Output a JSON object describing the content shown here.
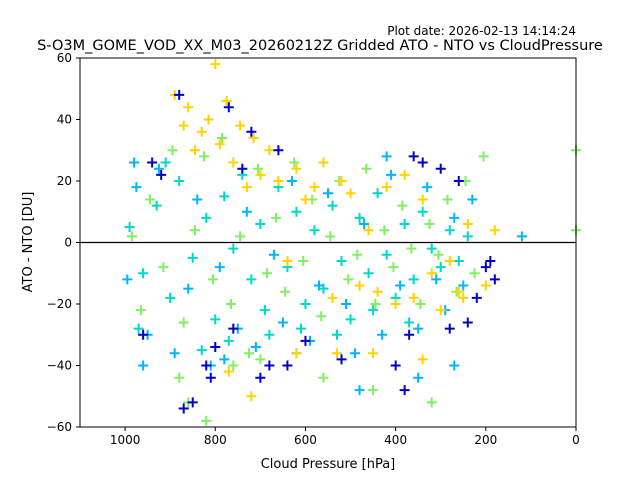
{
  "chart_data": {
    "type": "scatter",
    "title": "S-O3M_GOME_VOD_XX_M03_20260212Z Gridded ATO - NTO vs CloudPressure",
    "subtitle": "Plot date: 2026-02-13 14:14:24",
    "xlabel": "Cloud Pressure [hPa]",
    "ylabel": "ATO - NTO [DU]",
    "xlim": [
      1100,
      0
    ],
    "ylim": [
      -60,
      60
    ],
    "x_reversed": true,
    "x_ticks": [
      1000,
      800,
      600,
      400,
      200,
      0
    ],
    "y_ticks": [
      -60,
      -40,
      -20,
      0,
      20,
      40,
      60
    ],
    "x_tick_labels": [
      "1000",
      "800",
      "600",
      "400",
      "200",
      "0"
    ],
    "y_tick_labels": [
      "−60",
      "−40",
      "−20",
      "0",
      "20",
      "40",
      "60"
    ],
    "reference_line": {
      "y": 0,
      "color": "#000000"
    },
    "marker": "+",
    "grid": false,
    "series": [
      {
        "color": "#00d8c8",
        "points": [
          [
            990,
            5
          ],
          [
            960,
            -10
          ],
          [
            930,
            12
          ],
          [
            900,
            -18
          ],
          [
            880,
            20
          ],
          [
            850,
            -5
          ],
          [
            820,
            8
          ],
          [
            800,
            -25
          ],
          [
            780,
            15
          ],
          [
            760,
            -2
          ],
          [
            740,
            22
          ],
          [
            720,
            -12
          ],
          [
            700,
            6
          ],
          [
            680,
            -30
          ],
          [
            660,
            18
          ],
          [
            640,
            -8
          ],
          [
            620,
            10
          ],
          [
            600,
            -20
          ],
          [
            580,
            4
          ],
          [
            560,
            -15
          ],
          [
            540,
            12
          ],
          [
            520,
            -6
          ],
          [
            500,
            -25
          ],
          [
            480,
            8
          ],
          [
            460,
            -10
          ],
          [
            440,
            16
          ],
          [
            420,
            -4
          ],
          [
            400,
            -18
          ],
          [
            380,
            6
          ],
          [
            360,
            -12
          ],
          [
            340,
            10
          ],
          [
            320,
            -2
          ],
          [
            300,
            -8
          ],
          [
            280,
            4
          ],
          [
            260,
            -6
          ],
          [
            240,
            2
          ],
          [
            970,
            -28
          ],
          [
            910,
            26
          ],
          [
            830,
            -35
          ],
          [
            770,
            -32
          ],
          [
            690,
            -22
          ],
          [
            610,
            -28
          ],
          [
            530,
            -30
          ],
          [
            450,
            -22
          ],
          [
            370,
            -26
          ]
        ]
      },
      {
        "color": "#00b4ff",
        "points": [
          [
            995,
            -12
          ],
          [
            975,
            18
          ],
          [
            950,
            -30
          ],
          [
            925,
            24
          ],
          [
            890,
            -36
          ],
          [
            860,
            -15
          ],
          [
            840,
            14
          ],
          [
            810,
            -40
          ],
          [
            790,
            -8
          ],
          [
            750,
            -28
          ],
          [
            730,
            10
          ],
          [
            710,
            -34
          ],
          [
            670,
            -4
          ],
          [
            650,
            -26
          ],
          [
            630,
            20
          ],
          [
            590,
            -32
          ],
          [
            570,
            -14
          ],
          [
            550,
            16
          ],
          [
            510,
            -20
          ],
          [
            490,
            -36
          ],
          [
            470,
            6
          ],
          [
            430,
            -30
          ],
          [
            410,
            22
          ],
          [
            390,
            -14
          ],
          [
            350,
            -28
          ],
          [
            330,
            18
          ],
          [
            310,
            -12
          ],
          [
            290,
            -22
          ],
          [
            270,
            8
          ],
          [
            250,
            -14
          ],
          [
            230,
            14
          ],
          [
            120,
            2
          ],
          [
            960,
            -40
          ],
          [
            780,
            -38
          ],
          [
            620,
            -36
          ],
          [
            480,
            -48
          ],
          [
            350,
            -44
          ],
          [
            270,
            -40
          ],
          [
            980,
            26
          ],
          [
            420,
            28
          ]
        ]
      },
      {
        "color": "#80f060",
        "points": [
          [
            985,
            2
          ],
          [
            965,
            -22
          ],
          [
            945,
            14
          ],
          [
            915,
            -8
          ],
          [
            895,
            30
          ],
          [
            870,
            -26
          ],
          [
            845,
            4
          ],
          [
            825,
            28
          ],
          [
            805,
            -12
          ],
          [
            785,
            34
          ],
          [
            765,
            -20
          ],
          [
            745,
            2
          ],
          [
            725,
            -36
          ],
          [
            705,
            24
          ],
          [
            685,
            -10
          ],
          [
            665,
            8
          ],
          [
            645,
            -16
          ],
          [
            625,
            26
          ],
          [
            605,
            -6
          ],
          [
            585,
            14
          ],
          [
            565,
            -24
          ],
          [
            545,
            2
          ],
          [
            525,
            20
          ],
          [
            505,
            -12
          ],
          [
            485,
            -4
          ],
          [
            465,
            24
          ],
          [
            445,
            -20
          ],
          [
            425,
            4
          ],
          [
            405,
            -8
          ],
          [
            385,
            12
          ],
          [
            365,
            -2
          ],
          [
            345,
            -20
          ],
          [
            325,
            6
          ],
          [
            305,
            -4
          ],
          [
            285,
            14
          ],
          [
            265,
            -16
          ],
          [
            245,
            20
          ],
          [
            225,
            -10
          ],
          [
            205,
            28
          ],
          [
            880,
            -44
          ],
          [
            860,
            -52
          ],
          [
            820,
            -58
          ],
          [
            760,
            -40
          ],
          [
            700,
            -38
          ],
          [
            560,
            -44
          ],
          [
            450,
            -48
          ],
          [
            320,
            -52
          ],
          [
            0,
            30
          ],
          [
            0,
            4
          ]
        ]
      },
      {
        "color": "#ffd200",
        "points": [
          [
            890,
            48
          ],
          [
            870,
            38
          ],
          [
            860,
            44
          ],
          [
            845,
            30
          ],
          [
            830,
            36
          ],
          [
            815,
            40
          ],
          [
            800,
            58
          ],
          [
            790,
            32
          ],
          [
            775,
            46
          ],
          [
            760,
            26
          ],
          [
            745,
            38
          ],
          [
            730,
            18
          ],
          [
            715,
            34
          ],
          [
            700,
            22
          ],
          [
            680,
            30
          ],
          [
            660,
            20
          ],
          [
            640,
            -6
          ],
          [
            620,
            24
          ],
          [
            600,
            14
          ],
          [
            580,
            18
          ],
          [
            560,
            26
          ],
          [
            540,
            -18
          ],
          [
            520,
            20
          ],
          [
            500,
            16
          ],
          [
            480,
            -14
          ],
          [
            460,
            4
          ],
          [
            440,
            -16
          ],
          [
            420,
            18
          ],
          [
            400,
            -20
          ],
          [
            380,
            22
          ],
          [
            360,
            -18
          ],
          [
            340,
            14
          ],
          [
            320,
            -10
          ],
          [
            300,
            -22
          ],
          [
            280,
            -6
          ],
          [
            260,
            -16
          ],
          [
            250,
            -18
          ],
          [
            240,
            6
          ],
          [
            200,
            -14
          ],
          [
            180,
            4
          ],
          [
            770,
            -42
          ],
          [
            720,
            -50
          ],
          [
            620,
            -36
          ],
          [
            530,
            -36
          ],
          [
            450,
            -36
          ],
          [
            340,
            -38
          ]
        ]
      },
      {
        "color": "#0000c8",
        "points": [
          [
            880,
            48
          ],
          [
            870,
            -54
          ],
          [
            850,
            -52
          ],
          [
            820,
            -40
          ],
          [
            810,
            -44
          ],
          [
            800,
            -34
          ],
          [
            770,
            44
          ],
          [
            760,
            -28
          ],
          [
            740,
            24
          ],
          [
            720,
            36
          ],
          [
            700,
            -44
          ],
          [
            680,
            -40
          ],
          [
            660,
            30
          ],
          [
            640,
            -40
          ],
          [
            600,
            -32
          ],
          [
            520,
            -38
          ],
          [
            400,
            -40
          ],
          [
            380,
            -48
          ],
          [
            370,
            -30
          ],
          [
            360,
            28
          ],
          [
            340,
            26
          ],
          [
            300,
            24
          ],
          [
            280,
            -28
          ],
          [
            260,
            20
          ],
          [
            240,
            -26
          ],
          [
            220,
            -18
          ],
          [
            200,
            -8
          ],
          [
            190,
            -6
          ],
          [
            180,
            -12
          ],
          [
            960,
            -30
          ],
          [
            940,
            26
          ],
          [
            920,
            22
          ]
        ]
      }
    ]
  }
}
